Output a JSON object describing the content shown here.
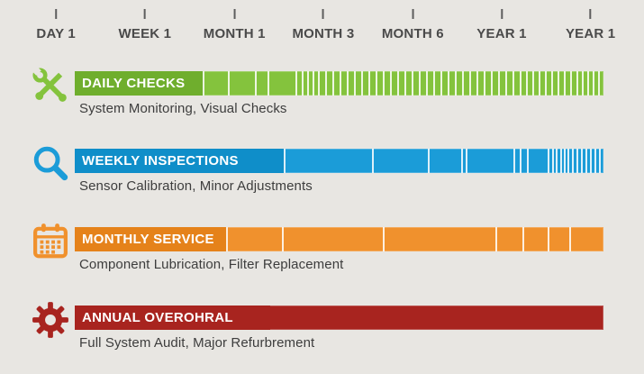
{
  "background_color": "#e8e6e2",
  "timeline": {
    "ticks": [
      {
        "label": "DAY 1",
        "x_pct": 8.7
      },
      {
        "label": "WEEK 1",
        "x_pct": 22.5
      },
      {
        "label": "MONTH 1",
        "x_pct": 36.4
      },
      {
        "label": "MONTH 3",
        "x_pct": 50.2
      },
      {
        "label": "MONTH 6",
        "x_pct": 64.1
      },
      {
        "label": "YEAR 1",
        "x_pct": 77.9
      },
      {
        "label": "YEAR 1",
        "x_pct": 91.7
      }
    ]
  },
  "rows": [
    {
      "title": "DAILY CHECKS",
      "subtitle": "System Monitoring, Visual Checks",
      "icon": "tools-icon",
      "bar_color": "#84c33d",
      "label_color": "#6fae2d",
      "label_width_pct": 24.5,
      "separator": true,
      "segments_pct": [
        29.0,
        34.1,
        36.5,
        41.7,
        42.9,
        44.0,
        45.0,
        46.0,
        47.4,
        48.7,
        50.1,
        51.4,
        52.8,
        54.2,
        55.5,
        56.9,
        58.3,
        59.6,
        61.0,
        62.3,
        63.7,
        65.1,
        66.4,
        67.8,
        69.2,
        70.5,
        71.9,
        73.3,
        74.6,
        76.0,
        77.3,
        78.7,
        80.1,
        81.4,
        82.8,
        84.2,
        85.3,
        86.5,
        87.7,
        88.9,
        90.1,
        91.3,
        92.5,
        93.7,
        94.9,
        95.9,
        96.9,
        98.0,
        99.0
      ]
    },
    {
      "title": "WEEKLY INSPECTIONS",
      "subtitle": "Sensor Calibration, Minor Adjustments",
      "icon": "magnifier-icon",
      "bar_color": "#1b9cd8",
      "label_color": "#0f8ec9",
      "label_width_pct": 39.9,
      "separator": true,
      "segments_pct": [
        56.2,
        66.8,
        73.1,
        73.9,
        83.0,
        84.2,
        85.5,
        89.4,
        90.3,
        91.0,
        91.8,
        92.5,
        93.2,
        94.0,
        94.9,
        95.7,
        96.6,
        97.4,
        98.3,
        99.1
      ]
    },
    {
      "title": "MONTHLY SERVICE",
      "subtitle": "Component Lubrication, Filter Replacement",
      "icon": "calendar-icon",
      "bar_color": "#f0912d",
      "label_color": "#e5821a",
      "label_width_pct": 29.0,
      "separator": true,
      "segments_pct": [
        39.2,
        58.3,
        79.6,
        84.7,
        89.4,
        93.5
      ]
    },
    {
      "title": "ANNUAL OVEROHRAL",
      "subtitle": "Full System Audit, Major Refurbrement",
      "icon": "gear-icon",
      "bar_color": "#a8241f",
      "label_color": "#a8241f",
      "label_width_pct": 37.0,
      "separator": false,
      "segments_pct": []
    }
  ]
}
